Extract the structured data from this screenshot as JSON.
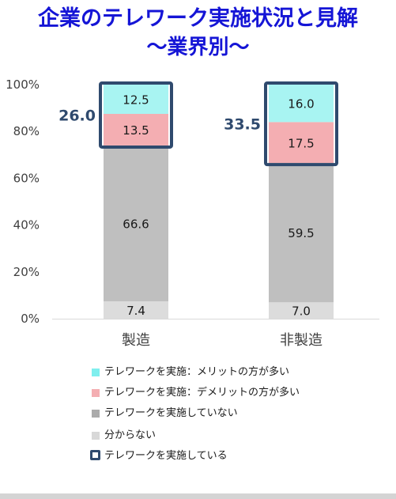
{
  "title": "企業のテレワーク実施状況と見解",
  "subtitle": "～業界別～",
  "chart_data": {
    "type": "bar",
    "stacked": true,
    "categories": [
      "製造",
      "非製造"
    ],
    "yticks": [
      "0%",
      "20%",
      "40%",
      "60%",
      "80%",
      "100%"
    ],
    "ylim": [
      0,
      100
    ],
    "series": [
      {
        "name": "分からない",
        "values": [
          7.4,
          7.0
        ],
        "labels": [
          "7.4",
          "7.0"
        ],
        "color": "#dcdcdc"
      },
      {
        "name": "テレワークを実施していない",
        "values": [
          66.6,
          59.5
        ],
        "labels": [
          "66.6",
          "59.5"
        ],
        "color": "#bfbfbf"
      },
      {
        "name": "テレワークを実施：デメリットの方が多い",
        "values": [
          13.5,
          17.5
        ],
        "labels": [
          "13.5",
          "17.5"
        ],
        "color": "#f4aeb2"
      },
      {
        "name": "テレワークを実施：メリットの方が多い",
        "values": [
          12.5,
          16.0
        ],
        "labels": [
          "12.5",
          "16.0"
        ],
        "color": "#a8f4f2"
      }
    ],
    "totals": {
      "name": "テレワークを実施している",
      "labels": [
        "26.0",
        "33.5"
      ]
    },
    "outline_color": "#2f4a6e"
  },
  "legend": [
    {
      "label": "テレワークを実施：メリットの方が多い",
      "color": "#7fefee"
    },
    {
      "label": "テレワークを実施：デメリットの方が多い",
      "color": "#f4aeb2"
    },
    {
      "label": "テレワークを実施していない",
      "color": "#ababab"
    },
    {
      "label": "分からない",
      "color": "#d8d8d8"
    },
    {
      "label": "テレワークを実施している",
      "color": "#2f4a6e",
      "outline": true
    }
  ]
}
